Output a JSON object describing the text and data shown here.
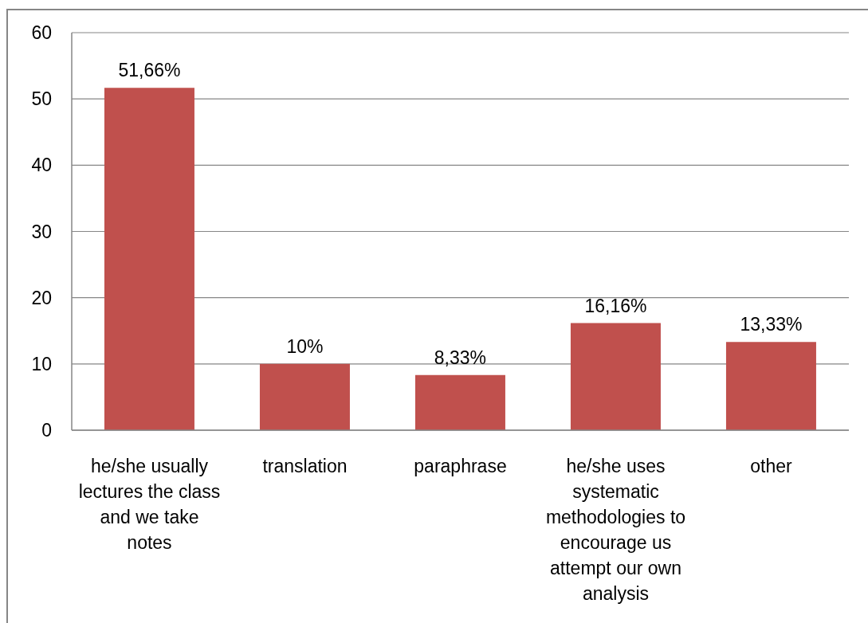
{
  "chart_data": {
    "type": "bar",
    "categories": [
      "he/she usually lectures the class and we take notes",
      "translation",
      "paraphrase",
      "he/she uses systematic methodologies to encourage us attempt our own analysis",
      "other"
    ],
    "values": [
      51.66,
      10,
      8.33,
      16.16,
      13.33
    ],
    "color": "#c0504d",
    "value_labels": [
      "51,66%",
      "10%",
      "8,33%",
      "16,16%",
      "13,33%"
    ],
    "ylim": [
      0,
      60
    ],
    "yticks": [
      0,
      10,
      20,
      30,
      40,
      50,
      60
    ],
    "grid": "y"
  }
}
